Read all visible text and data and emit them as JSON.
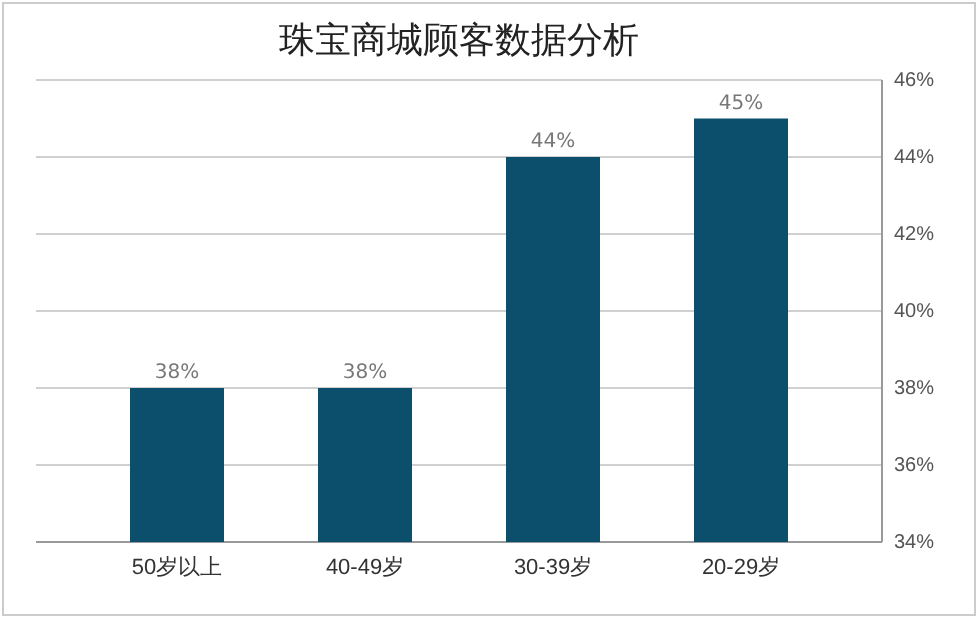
{
  "chart_data": {
    "type": "bar",
    "title": "珠宝商城顾客数据分析",
    "categories": [
      "50岁以上",
      "40-49岁",
      "30-39岁",
      "20-29岁"
    ],
    "values": [
      38,
      38,
      44,
      45
    ],
    "color": "#0b4f6c",
    "ylim": [
      34,
      46
    ],
    "yticks": [
      {
        "value": 34,
        "label": "34%"
      },
      {
        "value": 36,
        "label": "36%"
      },
      {
        "value": 38,
        "label": "38%"
      },
      {
        "value": 40,
        "label": "40%"
      },
      {
        "value": 42,
        "label": "42%"
      },
      {
        "value": 44,
        "label": "44%"
      },
      {
        "value": 46,
        "label": "46%"
      }
    ],
    "value_labels": [
      "38%",
      "38%",
      "44%",
      "45%"
    ],
    "grid": "y"
  }
}
